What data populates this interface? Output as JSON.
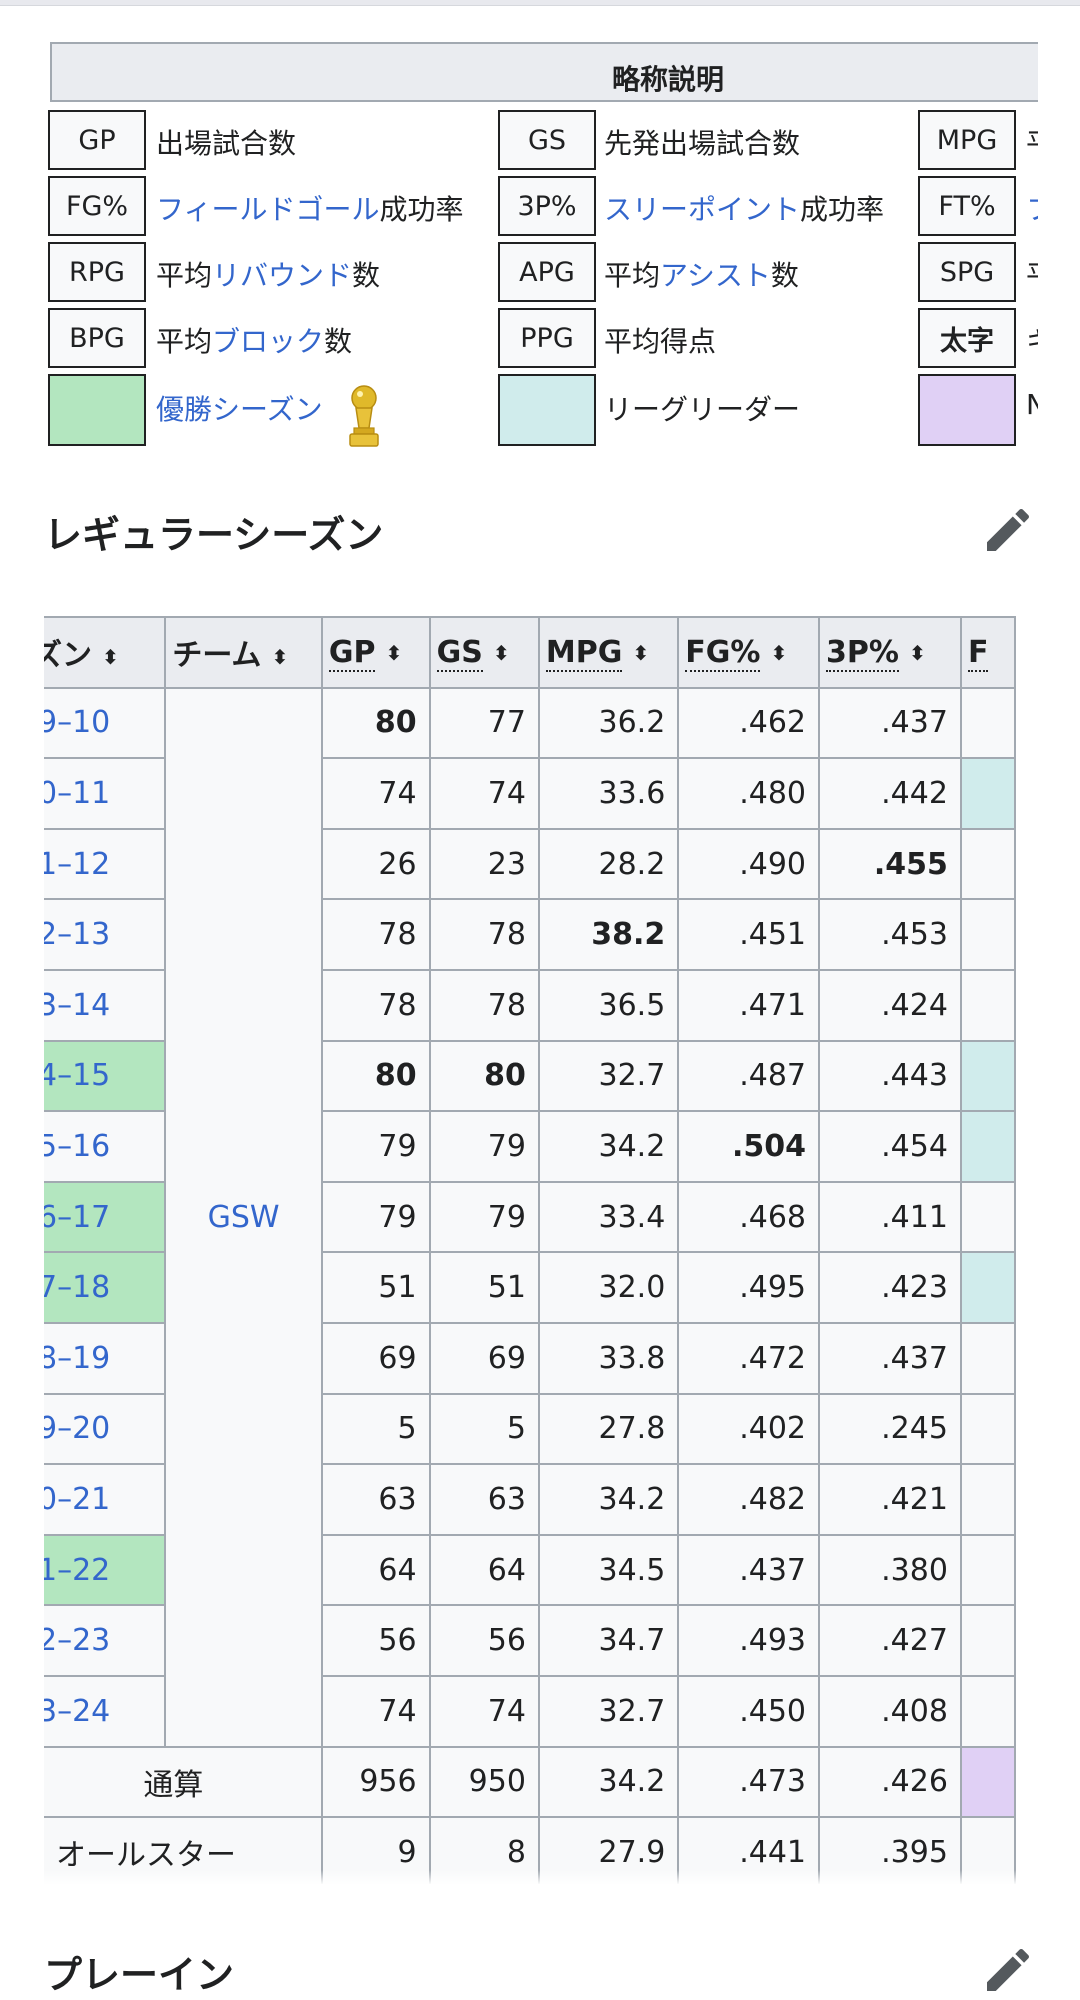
{
  "legend": {
    "title": "略称説明",
    "rows": [
      [
        {
          "abbr": "GP",
          "desc": "出場試合数"
        },
        {
          "abbr": "GS",
          "desc": "先発出場試合数"
        },
        {
          "abbr": "MPG",
          "desc": "平"
        }
      ],
      [
        {
          "abbr": "FG%",
          "link": "フィールドゴール",
          "desc": "成功率"
        },
        {
          "abbr": "3P%",
          "link": "スリーポイント",
          "desc": "成功率"
        },
        {
          "abbr": "FT%",
          "link": "フ"
        }
      ],
      [
        {
          "abbr": "RPG",
          "pre": "平均",
          "link": "リバウンド",
          "desc": "数"
        },
        {
          "abbr": "APG",
          "pre": "平均",
          "link": "アシスト",
          "desc": "数"
        },
        {
          "abbr": "SPG",
          "desc": "平"
        }
      ],
      [
        {
          "abbr": "BPG",
          "pre": "平均",
          "link": "ブロック",
          "desc": "数"
        },
        {
          "abbr": "PPG",
          "desc": "平均得点"
        },
        {
          "abbr": "太字",
          "desc": "キ"
        }
      ],
      [
        {
          "color": "#b3e6bf",
          "link": "優勝シーズン"
        },
        {
          "color": "#d0ecec",
          "desc": "リーグリーダー"
        },
        {
          "color": "#e0d0f5",
          "desc": "N"
        }
      ]
    ]
  },
  "regular_season": {
    "title": "レギュラーシーズン",
    "headers": [
      "ズン",
      "チーム",
      "GP",
      "GS",
      "MPG",
      "FG%",
      "3P%",
      "F"
    ],
    "team": "GSW",
    "rows": [
      {
        "season": "9–10",
        "gp": "80",
        "gs": "77",
        "mpg": "36.2",
        "fg": ".462",
        "tp": ".437"
      },
      {
        "season": "0–11",
        "gp": "74",
        "gs": "74",
        "mpg": "33.6",
        "fg": ".480",
        "tp": ".442"
      },
      {
        "season": "1–12",
        "gp": "26",
        "gs": "23",
        "mpg": "28.2",
        "fg": ".490",
        "tp": ".455"
      },
      {
        "season": "2–13",
        "gp": "78",
        "gs": "78",
        "mpg": "38.2",
        "fg": ".451",
        "tp": ".453"
      },
      {
        "season": "3–14",
        "gp": "78",
        "gs": "78",
        "mpg": "36.5",
        "fg": ".471",
        "tp": ".424"
      },
      {
        "season": "4–15",
        "gp": "80",
        "gs": "80",
        "mpg": "32.7",
        "fg": ".487",
        "tp": ".443"
      },
      {
        "season": "5–16",
        "gp": "79",
        "gs": "79",
        "mpg": "34.2",
        "fg": ".504",
        "tp": ".454"
      },
      {
        "season": "6–17",
        "gp": "79",
        "gs": "79",
        "mpg": "33.4",
        "fg": ".468",
        "tp": ".411"
      },
      {
        "season": "7–18",
        "gp": "51",
        "gs": "51",
        "mpg": "32.0",
        "fg": ".495",
        "tp": ".423"
      },
      {
        "season": "8–19",
        "gp": "69",
        "gs": "69",
        "mpg": "33.8",
        "fg": ".472",
        "tp": ".437"
      },
      {
        "season": "9–20",
        "gp": "5",
        "gs": "5",
        "mpg": "27.8",
        "fg": ".402",
        "tp": ".245"
      },
      {
        "season": "0–21",
        "gp": "63",
        "gs": "63",
        "mpg": "34.2",
        "fg": ".482",
        "tp": ".421"
      },
      {
        "season": "1–22",
        "gp": "64",
        "gs": "64",
        "mpg": "34.5",
        "fg": ".437",
        "tp": ".380"
      },
      {
        "season": "2–23",
        "gp": "56",
        "gs": "56",
        "mpg": "34.7",
        "fg": ".493",
        "tp": ".427"
      },
      {
        "season": "3–24",
        "gp": "74",
        "gs": "74",
        "mpg": "32.7",
        "fg": ".450",
        "tp": ".408"
      }
    ],
    "total": {
      "label": "通算",
      "gp": "956",
      "gs": "950",
      "mpg": "34.2",
      "fg": ".473",
      "tp": ".426"
    },
    "allstar": {
      "label": "オールスター",
      "gp": "9",
      "gs": "8",
      "mpg": "27.9",
      "fg": ".441",
      "tp": ".395"
    }
  },
  "play_in": {
    "title": "プレーイン"
  },
  "colors": {
    "champion": "#b3e6bf",
    "league_leader": "#d0ecec",
    "record": "#e0d0f5",
    "link": "#3366cc"
  }
}
